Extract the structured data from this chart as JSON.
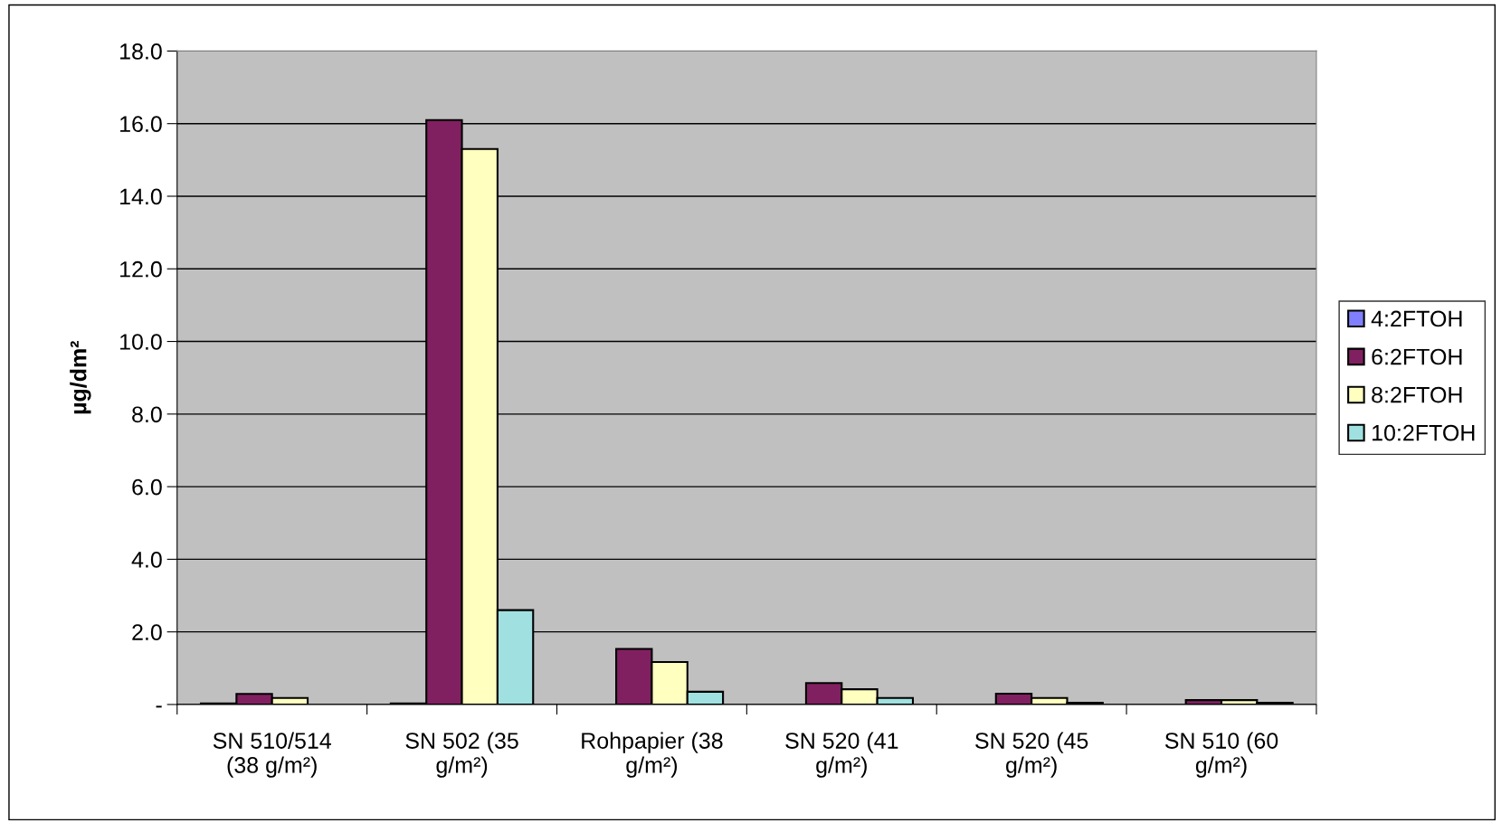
{
  "chart_data": {
    "type": "bar",
    "ylabel": "µg/dm²",
    "categories": [
      "SN 510/514\n(38 g/m²)",
      "SN 502 (35\ng/m²)",
      "Rohpapier (38\ng/m²)",
      "SN 520 (41\ng/m²)",
      "SN 520 (45\ng/m²)",
      "SN 510 (60\ng/m²)"
    ],
    "series": [
      {
        "name": "4:2FTOH",
        "color": "#8080ff",
        "values": [
          0.03,
          0.03,
          null,
          null,
          null,
          null
        ]
      },
      {
        "name": "6:2FTOH",
        "color": "#802060",
        "values": [
          0.29,
          16.1,
          1.53,
          0.59,
          0.3,
          0.12
        ]
      },
      {
        "name": "8:2FTOH",
        "color": "#ffffc0",
        "values": [
          0.18,
          15.3,
          1.17,
          0.42,
          0.18,
          0.12
        ]
      },
      {
        "name": "10:2FTOH",
        "color": "#a0e0e0",
        "values": [
          null,
          2.6,
          0.35,
          0.18,
          0.05,
          0.05
        ]
      }
    ],
    "ylim": [
      0,
      18
    ],
    "yticks": [
      {
        "value": 0,
        "label": "-"
      },
      {
        "value": 2,
        "label": "2.0"
      },
      {
        "value": 4,
        "label": "4.0"
      },
      {
        "value": 6,
        "label": "6.0"
      },
      {
        "value": 8,
        "label": "8.0"
      },
      {
        "value": 10,
        "label": "10.0"
      },
      {
        "value": 12,
        "label": "12.0"
      },
      {
        "value": 14,
        "label": "14.0"
      },
      {
        "value": 16,
        "label": "16.0"
      },
      {
        "value": 18,
        "label": "18.0"
      }
    ],
    "grid": "y",
    "legend": "right"
  }
}
